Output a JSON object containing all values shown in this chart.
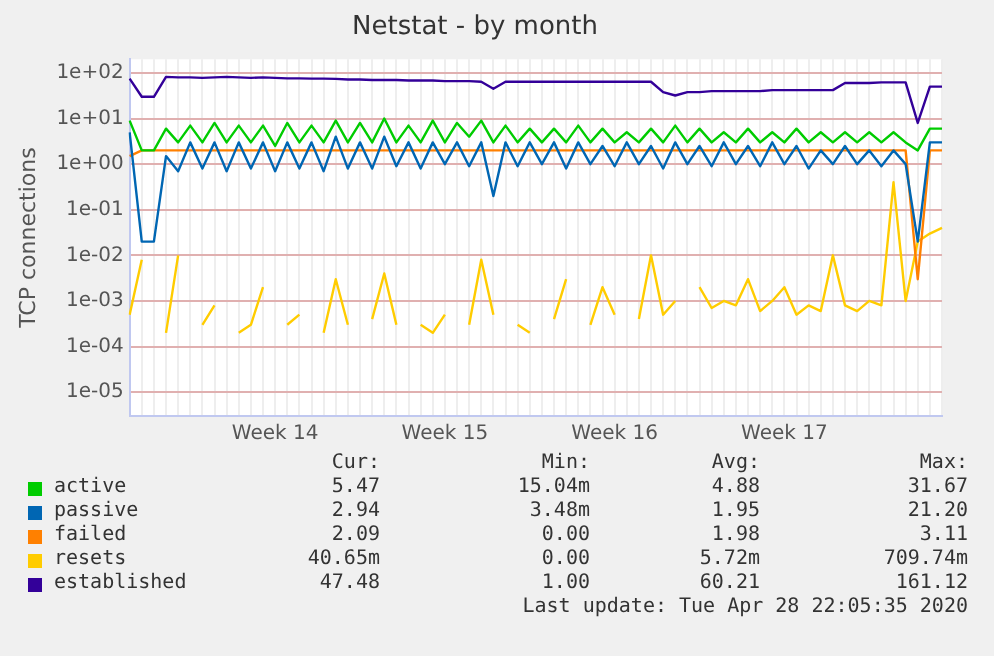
{
  "chart_data": {
    "type": "line",
    "title": "Netstat - by month",
    "ylabel": "TCP connections",
    "log": "y",
    "grid": true,
    "legend": "bottom",
    "categories": [
      null,
      null,
      null,
      null,
      null,
      null,
      null,
      null,
      null,
      null,
      null,
      null,
      "Week 14",
      null,
      null,
      null,
      null,
      null,
      null,
      null,
      null,
      null,
      null,
      null,
      null,
      null,
      "Week 15",
      null,
      null,
      null,
      null,
      null,
      null,
      null,
      null,
      null,
      null,
      null,
      null,
      null,
      "Week 16",
      null,
      null,
      null,
      null,
      null,
      null,
      null,
      null,
      null,
      null,
      null,
      null,
      null,
      "Week 17",
      null,
      null,
      null,
      null,
      null,
      null,
      null,
      null,
      null,
      null,
      null,
      null,
      null
    ],
    "ylim": [
      3e-06,
      200
    ],
    "yticks": [
      {
        "value": 1e-05,
        "label": "1e-05"
      },
      {
        "value": 0.0001,
        "label": "1e-04"
      },
      {
        "value": 0.001,
        "label": "1e-03"
      },
      {
        "value": 0.01,
        "label": "1e-02"
      },
      {
        "value": 0.1,
        "label": "1e-01"
      },
      {
        "value": 1,
        "label": "1e+00"
      },
      {
        "value": 10,
        "label": "1e+01"
      },
      {
        "value": 100,
        "label": "1e+02"
      }
    ],
    "series": [
      {
        "name": "active",
        "color": "#00cc00",
        "values": [
          9,
          2,
          2,
          6,
          3,
          7,
          3,
          8,
          3,
          7,
          3,
          7,
          2.5,
          8,
          3,
          7,
          3,
          9,
          3,
          8,
          3,
          10,
          3,
          7,
          3,
          9,
          3,
          8,
          4,
          9,
          3,
          7,
          3,
          6,
          3,
          6,
          3,
          7,
          3,
          6,
          3,
          5,
          3,
          6,
          3,
          7,
          3,
          6,
          3,
          5,
          3,
          6,
          3,
          5,
          3,
          6,
          3,
          5,
          3,
          5,
          3,
          5,
          3,
          5,
          3,
          2,
          6,
          6
        ]
      },
      {
        "name": "passive",
        "color": "#0066b3",
        "values": [
          5,
          0.02,
          0.02,
          1.5,
          0.7,
          3,
          0.8,
          3,
          0.7,
          3,
          0.8,
          3,
          0.7,
          3,
          0.8,
          3,
          0.7,
          4,
          0.8,
          3,
          0.8,
          4,
          0.9,
          3,
          0.8,
          3,
          1,
          3,
          0.9,
          3,
          0.2,
          3,
          0.9,
          3,
          1,
          3,
          0.8,
          3,
          1,
          2.5,
          0.9,
          3,
          1,
          2.5,
          0.8,
          3,
          1,
          2.5,
          0.9,
          3,
          1,
          2.5,
          0.9,
          3,
          1,
          2.5,
          0.8,
          2,
          1,
          2.5,
          1,
          2,
          0.9,
          2,
          1,
          0.02,
          3,
          3
        ]
      },
      {
        "name": "failed",
        "color": "#ff8000",
        "values": [
          1.5,
          2,
          2,
          2,
          2,
          2,
          2,
          2,
          2,
          2,
          2,
          2,
          2,
          2,
          2,
          2,
          2,
          2,
          2,
          2,
          2,
          2,
          2,
          2,
          2,
          2,
          2,
          2,
          2,
          2,
          2,
          2,
          2,
          2,
          2,
          2,
          2,
          2,
          2,
          2,
          2,
          2,
          2,
          2,
          2,
          2,
          2,
          2,
          2,
          2,
          2,
          2,
          2,
          2,
          2,
          2,
          2,
          2,
          2,
          2,
          2,
          2,
          2,
          2,
          2,
          0.003,
          2,
          2
        ]
      },
      {
        "name": "resets",
        "color": "#ffcc00",
        "values": [
          0.0005,
          0.008,
          null,
          0.0002,
          0.01,
          null,
          0.0003,
          0.0008,
          null,
          0.0002,
          0.0003,
          0.002,
          null,
          0.0003,
          0.0005,
          null,
          0.0002,
          0.003,
          0.0003,
          null,
          0.0004,
          0.004,
          0.0003,
          null,
          0.0003,
          0.0002,
          0.0005,
          null,
          0.0003,
          0.008,
          0.0005,
          null,
          0.0003,
          0.0002,
          null,
          0.0004,
          0.003,
          null,
          0.0003,
          0.002,
          0.0005,
          null,
          0.0004,
          0.01,
          0.0005,
          0.001,
          null,
          0.002,
          0.0007,
          0.001,
          0.0008,
          0.003,
          0.0006,
          0.001,
          0.002,
          0.0005,
          0.0008,
          0.0006,
          0.01,
          0.0008,
          0.0006,
          0.001,
          0.0008,
          0.4,
          0.001,
          0.02,
          0.03,
          0.04
        ]
      },
      {
        "name": "established",
        "color": "#330099",
        "values": [
          75,
          30,
          30,
          82,
          80,
          80,
          78,
          80,
          82,
          80,
          78,
          80,
          78,
          76,
          76,
          75,
          75,
          74,
          72,
          72,
          70,
          70,
          70,
          68,
          68,
          68,
          66,
          66,
          66,
          64,
          45,
          64,
          64,
          64,
          64,
          64,
          64,
          64,
          64,
          64,
          64,
          64,
          64,
          64,
          38,
          32,
          38,
          38,
          40,
          40,
          40,
          40,
          40,
          42,
          42,
          42,
          42,
          42,
          42,
          60,
          60,
          60,
          62,
          62,
          62,
          8,
          50,
          50
        ]
      }
    ],
    "annotations": [
      "Cur:",
      "Min:",
      "Avg:",
      "Max:",
      "5.47",
      "15.04m",
      "4.88",
      "31.67",
      "2.94",
      "3.48m",
      "1.95",
      "21.20",
      "2.09",
      "0.00",
      "1.98",
      "3.11",
      "40.65m",
      "0.00",
      "5.72m",
      "709.74m",
      "47.48",
      "1.00",
      "60.21",
      "161.12",
      "Last update: Tue Apr 28 22:05:35 2020"
    ]
  }
}
